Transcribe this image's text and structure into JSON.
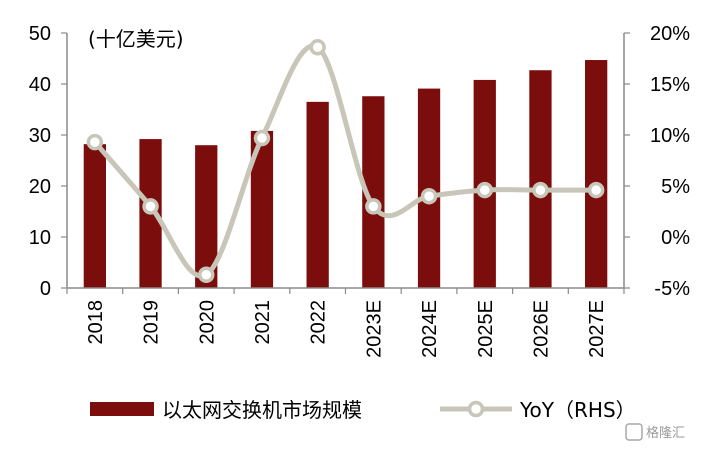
{
  "chart_data": {
    "type": "bar",
    "unit_label": "(十亿美元)",
    "categories": [
      "2018",
      "2019",
      "2020",
      "2021",
      "2022",
      "2023E",
      "2024E",
      "2025E",
      "2026E",
      "2027E"
    ],
    "series": [
      {
        "name": "以太网交换机市场规模",
        "type": "bar",
        "axis": "left",
        "color": "#7b0d0d",
        "values": [
          28.2,
          29.2,
          28.0,
          30.8,
          36.5,
          37.6,
          39.1,
          40.8,
          42.7,
          44.7
        ]
      },
      {
        "name": "YoY（RHS）",
        "type": "line",
        "axis": "right",
        "color": "#c8c6b8",
        "values": [
          9.3,
          3.0,
          -3.7,
          9.7,
          18.6,
          3.0,
          4.0,
          4.6,
          4.6,
          4.6
        ]
      }
    ],
    "y_left": {
      "min": 0,
      "max": 50,
      "ticks": [
        "0",
        "10",
        "20",
        "30",
        "40",
        "50"
      ]
    },
    "y_right": {
      "min": -5,
      "max": 20,
      "ticks": [
        "-5%",
        "0%",
        "5%",
        "10%",
        "15%",
        "20%"
      ]
    },
    "grid": false,
    "legend_position": "bottom"
  },
  "watermark": "格隆汇"
}
